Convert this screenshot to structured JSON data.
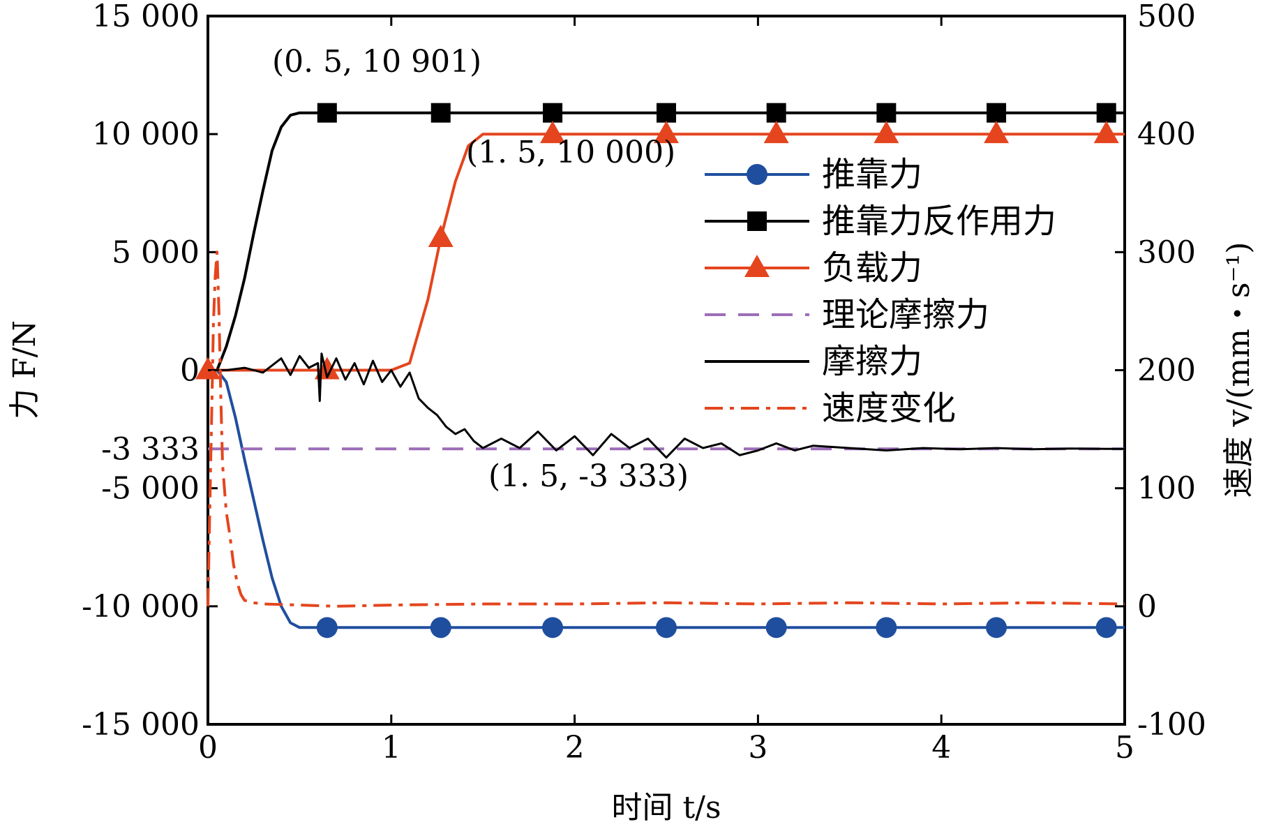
{
  "chart_data": {
    "type": "line",
    "xlabel": "时间 t/s",
    "ylabel_left": "力 F/N",
    "ylabel_right": "速度 v/(mm・s⁻¹)",
    "xlim": [
      0,
      5
    ],
    "ylim_left": [
      -15000,
      15000
    ],
    "ylim_right": [
      -100,
      500
    ],
    "grid": false,
    "legend_position": "right",
    "x_ticks": [
      "0",
      "1",
      "2",
      "3",
      "4",
      "5"
    ],
    "y_left_ticks": [
      "15 000",
      "10 000",
      "5 000",
      "0",
      "-3 333",
      "-5 000",
      "-10 000",
      "-15 000"
    ],
    "y_right_ticks": [
      "500",
      "400",
      "300",
      "200",
      "100",
      "0",
      "-100"
    ],
    "annotations": [
      {
        "text": "(0. 5, 10 901)",
        "x": 0.5,
        "y": 10901
      },
      {
        "text": "(1. 5, 10 000)",
        "x": 1.5,
        "y": 10000
      },
      {
        "text": "(1. 5, -3 333)",
        "x": 1.5,
        "y": -3333
      }
    ],
    "series": [
      {
        "name": "推靠力",
        "axis": "left",
        "color": "#1f4e9e",
        "marker": "circle",
        "style": "solid",
        "x": [
          0,
          0.05,
          0.1,
          0.15,
          0.2,
          0.25,
          0.3,
          0.35,
          0.4,
          0.45,
          0.5,
          0.65,
          1.27,
          1.88,
          2.5,
          3.1,
          3.7,
          4.3,
          4.9,
          5
        ],
        "y": [
          0,
          0,
          -500,
          -2000,
          -3800,
          -5500,
          -7200,
          -8800,
          -10000,
          -10700,
          -10901,
          -10901,
          -10901,
          -10901,
          -10901,
          -10901,
          -10901,
          -10901,
          -10901,
          -10901
        ],
        "marker_x": [
          0.65,
          1.27,
          1.88,
          2.5,
          3.1,
          3.7,
          4.3,
          4.9
        ]
      },
      {
        "name": "推靠力反作用力",
        "axis": "left",
        "color": "#000000",
        "marker": "square",
        "style": "solid",
        "x": [
          0,
          0.05,
          0.1,
          0.15,
          0.2,
          0.25,
          0.3,
          0.35,
          0.4,
          0.45,
          0.5,
          0.65,
          1.27,
          1.88,
          2.5,
          3.1,
          3.7,
          4.3,
          4.9,
          5
        ],
        "y": [
          0,
          0,
          1000,
          2300,
          3900,
          5800,
          7600,
          9300,
          10300,
          10800,
          10901,
          10901,
          10901,
          10901,
          10901,
          10901,
          10901,
          10901,
          10901,
          10901
        ],
        "marker_x": [
          0.65,
          1.27,
          1.88,
          2.5,
          3.1,
          3.7,
          4.3,
          4.9
        ]
      },
      {
        "name": "负载力",
        "axis": "left",
        "color": "#e4451e",
        "marker": "triangle",
        "style": "solid",
        "x": [
          0,
          0.65,
          1.0,
          1.1,
          1.2,
          1.27,
          1.35,
          1.42,
          1.5,
          1.88,
          2.5,
          3.1,
          3.7,
          4.3,
          4.9,
          5
        ],
        "y": [
          0,
          0,
          0,
          300,
          3000,
          5600,
          8000,
          9500,
          10000,
          10000,
          10000,
          10000,
          10000,
          10000,
          10000,
          10000
        ],
        "marker_x": [
          0,
          0.65,
          1.27,
          1.88,
          2.5,
          3.1,
          3.7,
          4.3,
          4.9
        ]
      },
      {
        "name": "理论摩擦力",
        "axis": "left",
        "color": "#9c6db8",
        "marker": "none",
        "style": "dashed",
        "x": [
          0,
          5
        ],
        "y": [
          -3333,
          -3333
        ]
      },
      {
        "name": "摩擦力",
        "axis": "left",
        "color": "#000000",
        "marker": "none",
        "style": "solid",
        "x": [
          0,
          0.1,
          0.2,
          0.3,
          0.35,
          0.4,
          0.45,
          0.5,
          0.55,
          0.6,
          0.61,
          0.62,
          0.65,
          0.7,
          0.75,
          0.8,
          0.85,
          0.9,
          0.95,
          1.0,
          1.05,
          1.1,
          1.15,
          1.2,
          1.25,
          1.3,
          1.35,
          1.4,
          1.45,
          1.5,
          1.6,
          1.7,
          1.8,
          1.9,
          2.0,
          2.1,
          2.2,
          2.3,
          2.4,
          2.5,
          2.6,
          2.7,
          2.8,
          2.9,
          3.0,
          3.1,
          3.2,
          3.3,
          3.5,
          3.7,
          3.9,
          4.1,
          4.3,
          4.5,
          4.7,
          4.9,
          5.0
        ],
        "y": [
          0,
          0,
          100,
          -100,
          200,
          500,
          -200,
          600,
          100,
          300,
          -1300,
          700,
          -300,
          500,
          -400,
          300,
          -600,
          400,
          -500,
          0,
          -700,
          -100,
          -1200,
          -1600,
          -1900,
          -2400,
          -2700,
          -2500,
          -3000,
          -3300,
          -2900,
          -3300,
          -2600,
          -3400,
          -2800,
          -3600,
          -2700,
          -3300,
          -2900,
          -3700,
          -2900,
          -3300,
          -3100,
          -3600,
          -3400,
          -3100,
          -3400,
          -3200,
          -3300,
          -3400,
          -3300,
          -3350,
          -3300,
          -3350,
          -3320,
          -3333,
          -3333
        ]
      },
      {
        "name": "速度变化",
        "axis": "right",
        "color": "#e4451e",
        "marker": "none",
        "style": "dashdot",
        "x": [
          0,
          0.01,
          0.02,
          0.03,
          0.04,
          0.05,
          0.06,
          0.07,
          0.08,
          0.1,
          0.12,
          0.14,
          0.16,
          0.18,
          0.2,
          0.25,
          0.3,
          0.5,
          0.7,
          1.0,
          1.5,
          2.0,
          2.5,
          3.0,
          3.5,
          4.0,
          4.5,
          5.0
        ],
        "y": [
          0,
          80,
          160,
          240,
          280,
          300,
          250,
          180,
          120,
          80,
          60,
          35,
          20,
          10,
          5,
          3,
          2,
          1,
          0,
          1,
          2,
          2,
          3,
          2,
          3,
          2,
          3,
          2
        ]
      }
    ]
  }
}
